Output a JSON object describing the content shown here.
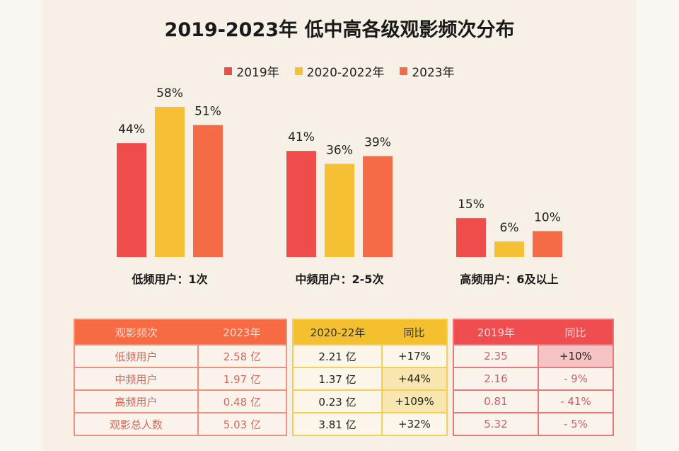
{
  "chart_data": {
    "type": "bar",
    "title": "2019-2023年 低中高各级观影频次分布",
    "categories": [
      "低频用户：1次",
      "中频用户：2-5次",
      "高频用户：6及以上"
    ],
    "series": [
      {
        "name": "2019年",
        "values": [
          44,
          41,
          15
        ],
        "labels": [
          "44%",
          "41%",
          "15%"
        ],
        "color": "#ef4d4b"
      },
      {
        "name": "2020-2022年",
        "values": [
          58,
          36,
          6
        ],
        "labels": [
          "58%",
          "36%",
          "6%"
        ],
        "color": "#f5c033"
      },
      {
        "name": "2023年",
        "values": [
          51,
          39,
          10
        ],
        "labels": [
          "51%",
          "39%",
          "10%"
        ],
        "color": "#f56b45"
      }
    ],
    "ylim": [
      0,
      60
    ],
    "grid": false,
    "legend": "top-center"
  },
  "tables": {
    "t1": {
      "headers": [
        "观影频次",
        "2023年"
      ],
      "rows": [
        [
          "低频用户",
          "2.58 亿"
        ],
        [
          "中频用户",
          "1.97 亿"
        ],
        [
          "高频用户",
          "0.48 亿"
        ],
        [
          "观影总人数",
          "5.03 亿"
        ]
      ]
    },
    "t2": {
      "headers": [
        "2020-22年",
        "同比"
      ],
      "rows": [
        [
          "2.21 亿",
          "+17%"
        ],
        [
          "1.37 亿",
          "+44%"
        ],
        [
          "0.23 亿",
          "+109%"
        ],
        [
          "3.81 亿",
          "+32%"
        ]
      ]
    },
    "t3": {
      "headers": [
        "2019年",
        "同比"
      ],
      "rows": [
        [
          "2.35",
          "+10%"
        ],
        [
          "2.16",
          "- 9%"
        ],
        [
          "0.81",
          "- 41%"
        ],
        [
          "5.32",
          "- 5%"
        ]
      ]
    }
  }
}
